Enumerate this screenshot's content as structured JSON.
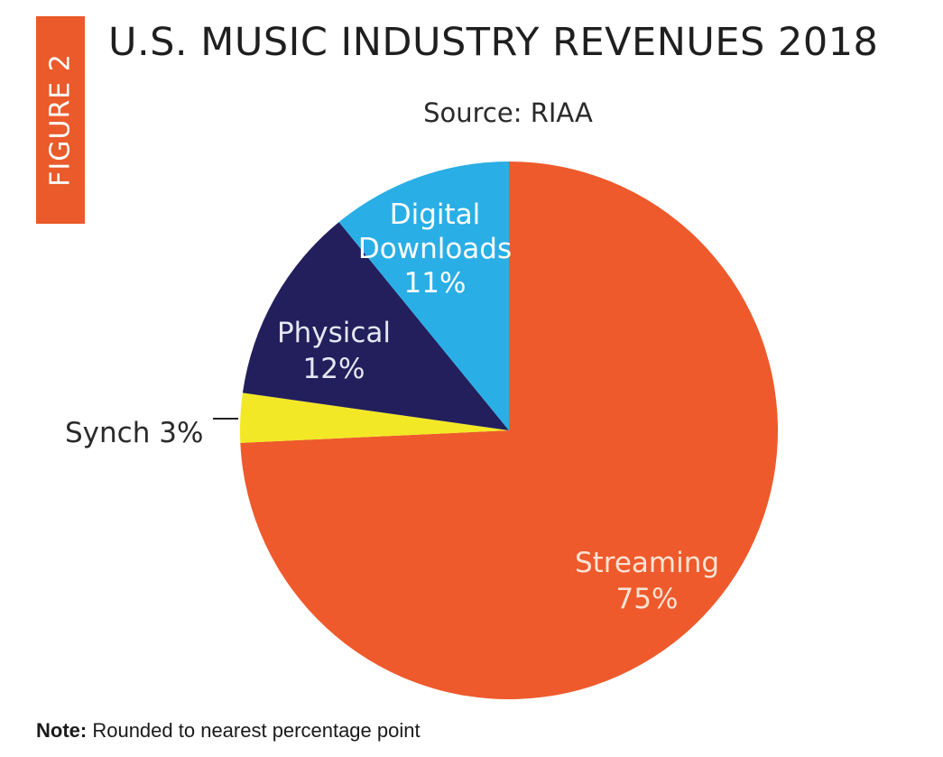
{
  "figure_tag": "FIGURE 2",
  "title": "U.S. MUSIC INDUSTRY REVENUES 2018",
  "subtitle": "Source: RIAA",
  "note": {
    "label": "Note:",
    "text": " Rounded to nearest percentage point"
  },
  "colors": {
    "accent": "#ea5a2a",
    "streaming": "#ee5a2b",
    "synch": "#f3e826",
    "physical": "#221f5c",
    "digital": "#2aaee6"
  },
  "chart_data": {
    "type": "pie",
    "title": "U.S. MUSIC INDUSTRY REVENUES 2018",
    "subtitle": "Source: RIAA",
    "start": "12 o'clock",
    "direction": "clockwise",
    "legend": "none",
    "slices": [
      {
        "label": "Streaming",
        "value": 75,
        "value_label": "75%",
        "color": "#ee5a2b"
      },
      {
        "label": "Synch",
        "value": 3,
        "value_label": "3%",
        "color": "#f3e826"
      },
      {
        "label": "Physical",
        "value": 12,
        "value_label": "12%",
        "color": "#221f5c"
      },
      {
        "label": "Digital Downloads",
        "value": 11,
        "value_label": "11%",
        "color": "#2aaee6"
      }
    ],
    "annotations": [
      {
        "text": "Streaming\n75%",
        "slice": "Streaming"
      },
      {
        "text": "Synch 3%",
        "slice": "Synch"
      },
      {
        "text": "Physical\n12%",
        "slice": "Physical"
      },
      {
        "text": "Digital\nDownloads\n11%",
        "slice": "Digital Downloads"
      }
    ]
  }
}
